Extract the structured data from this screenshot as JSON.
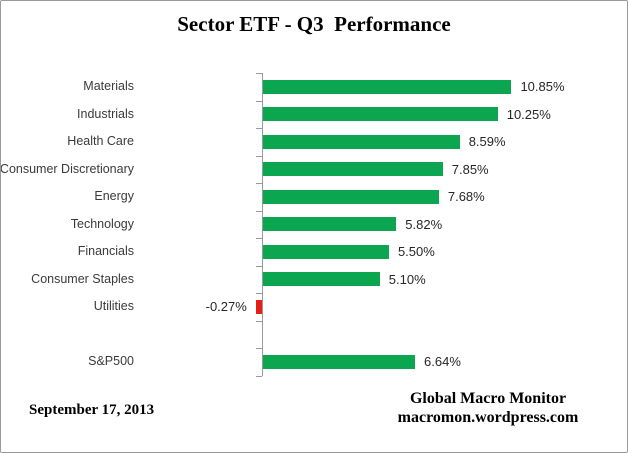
{
  "frame": {
    "background_color": "#ffffff",
    "border_color": "#9a9a9a"
  },
  "chart_data": {
    "type": "bar",
    "orientation": "horizontal",
    "title": "Sector ETF - Q3  Performance",
    "categories": [
      "Materials",
      "Industrials",
      "Health Care",
      "Consumer Discretionary",
      "Energy",
      "Technology",
      "Financials",
      "Consumer Staples",
      "Utilities",
      "",
      "S&P500"
    ],
    "values": [
      10.85,
      10.25,
      8.59,
      7.85,
      7.68,
      5.82,
      5.5,
      5.1,
      -0.27,
      null,
      6.64
    ],
    "value_labels": [
      "10.85%",
      "10.25%",
      "8.59%",
      "7.85%",
      "7.68%",
      "5.82%",
      "5.50%",
      "5.10%",
      "-0.27%",
      "",
      "6.64%"
    ],
    "unit": "%",
    "positive_color": "#0ba64f",
    "negative_color": "#e51f15",
    "axis_color": "#9a9a9a",
    "gridlines": false,
    "value_axis_labels_visible": false,
    "legend": "none"
  },
  "footer": {
    "date": "September 17, 2013",
    "attribution_line1": "Global Macro Monitor",
    "attribution_line2": "macromon.wordpress.com"
  }
}
